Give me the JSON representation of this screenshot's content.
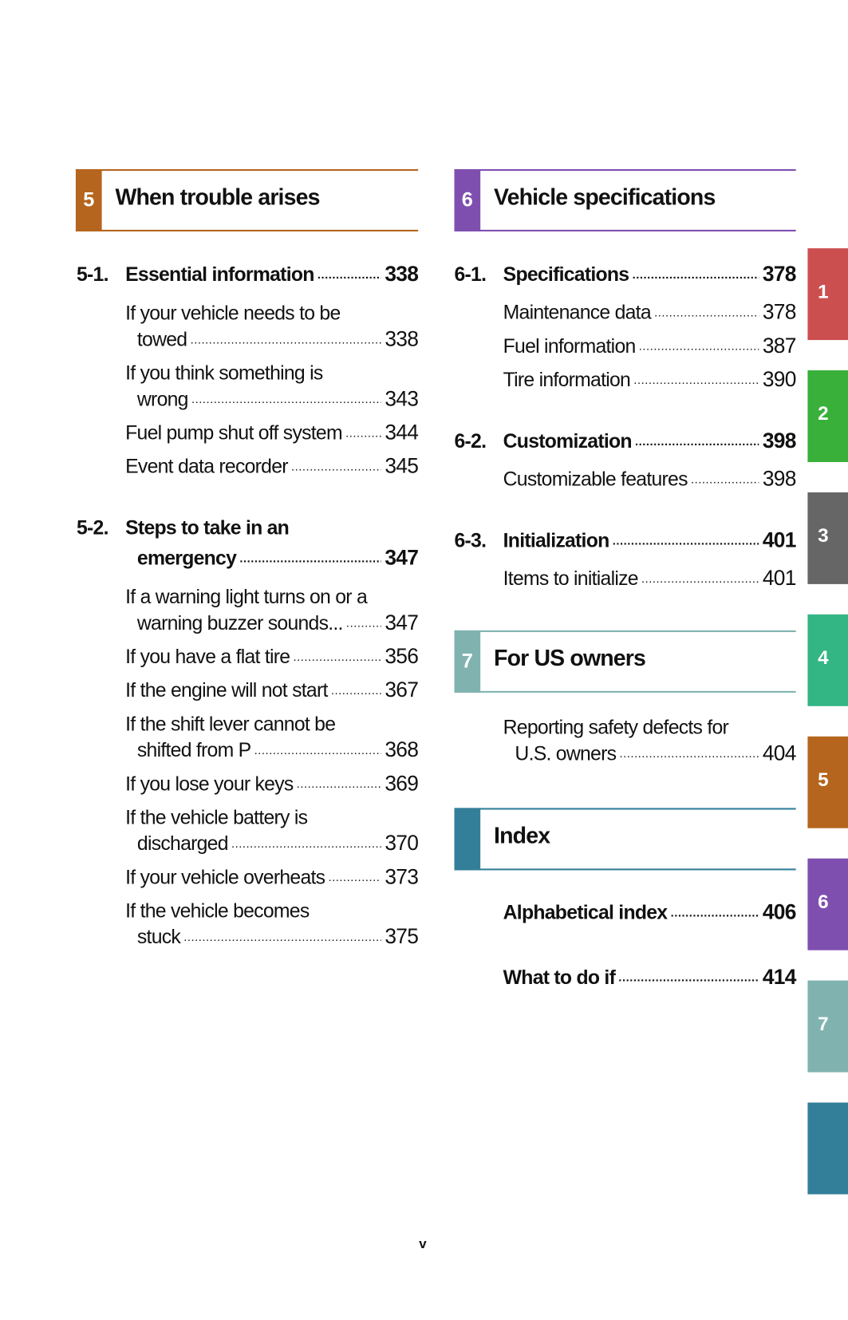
{
  "colors": {
    "ch1": "#cc4f4f",
    "ch2": "#38b03a",
    "ch3": "#666666",
    "ch4": "#33b584",
    "ch5": "#b5651d",
    "ch6": "#7f4fb0",
    "ch7": "#80b3b0",
    "index": "#337f99"
  },
  "headers": [
    {
      "num": "5",
      "title": "When trouble arises"
    },
    {
      "num": "6",
      "title": "Vehicle specifications"
    },
    {
      "num": "7",
      "title": "For US owners"
    },
    {
      "num": "",
      "title": "Index"
    }
  ],
  "left": [
    {
      "no": "5-1.",
      "lines": [
        {
          "text": "Essential information",
          "page": "338"
        }
      ],
      "entries": [
        [
          {
            "text": "If your vehicle needs to be"
          },
          {
            "text": "towed",
            "page": "338",
            "indent": true
          }
        ],
        [
          {
            "text": "If you think something is"
          },
          {
            "text": "wrong",
            "page": "343",
            "indent": true
          }
        ],
        [
          {
            "text": "Fuel pump shut off system",
            "page": "344"
          }
        ],
        [
          {
            "text": "Event data recorder",
            "page": "345"
          }
        ]
      ]
    },
    {
      "no": "5-2.",
      "lines": [
        {
          "text": "Steps to take in an"
        },
        {
          "text": "emergency",
          "page": "347",
          "indent": true
        }
      ],
      "entries": [
        [
          {
            "text": "If a warning light turns on or a"
          },
          {
            "text": "warning buzzer sounds...",
            "page": "347",
            "indent": true
          }
        ],
        [
          {
            "text": "If you have a flat tire",
            "page": "356"
          }
        ],
        [
          {
            "text": "If the engine will not start",
            "page": "367"
          }
        ],
        [
          {
            "text": "If the shift lever cannot be"
          },
          {
            "text": "shifted from P",
            "page": "368",
            "indent": true
          }
        ],
        [
          {
            "text": "If you lose your keys",
            "page": "369"
          }
        ],
        [
          {
            "text": "If the vehicle battery is"
          },
          {
            "text": "discharged",
            "page": "370",
            "indent": true
          }
        ],
        [
          {
            "text": "If your vehicle overheats",
            "page": "373"
          }
        ],
        [
          {
            "text": "If the vehicle becomes"
          },
          {
            "text": "stuck",
            "page": "375",
            "indent": true
          }
        ]
      ]
    }
  ],
  "right": [
    {
      "no": "6-1.",
      "lines": [
        {
          "text": "Specifications",
          "page": "378"
        }
      ],
      "entries": [
        [
          {
            "text": "Maintenance data",
            "page": "378"
          }
        ],
        [
          {
            "text": "Fuel information",
            "page": "387"
          }
        ],
        [
          {
            "text": "Tire information",
            "page": "390"
          }
        ]
      ]
    },
    {
      "no": "6-2.",
      "lines": [
        {
          "text": "Customization",
          "page": "398"
        }
      ],
      "entries": [
        [
          {
            "text": "Customizable features",
            "page": "398"
          }
        ]
      ]
    },
    {
      "no": "6-3.",
      "lines": [
        {
          "text": "Initialization",
          "page": "401"
        }
      ],
      "entries": [
        [
          {
            "text": "Items to initialize",
            "page": "401"
          }
        ]
      ]
    }
  ],
  "us_owners": [
    {
      "text": "Reporting safety defects for"
    },
    {
      "text": "U.S. owners",
      "page": "404",
      "indent": true
    }
  ],
  "index_entries": [
    {
      "text": "Alphabetical index",
      "page": "406"
    },
    {
      "text": "What to do if",
      "page": "414"
    }
  ],
  "tabs": [
    "1",
    "2",
    "3",
    "4",
    "5",
    "6",
    "7",
    ""
  ],
  "footer": "v"
}
